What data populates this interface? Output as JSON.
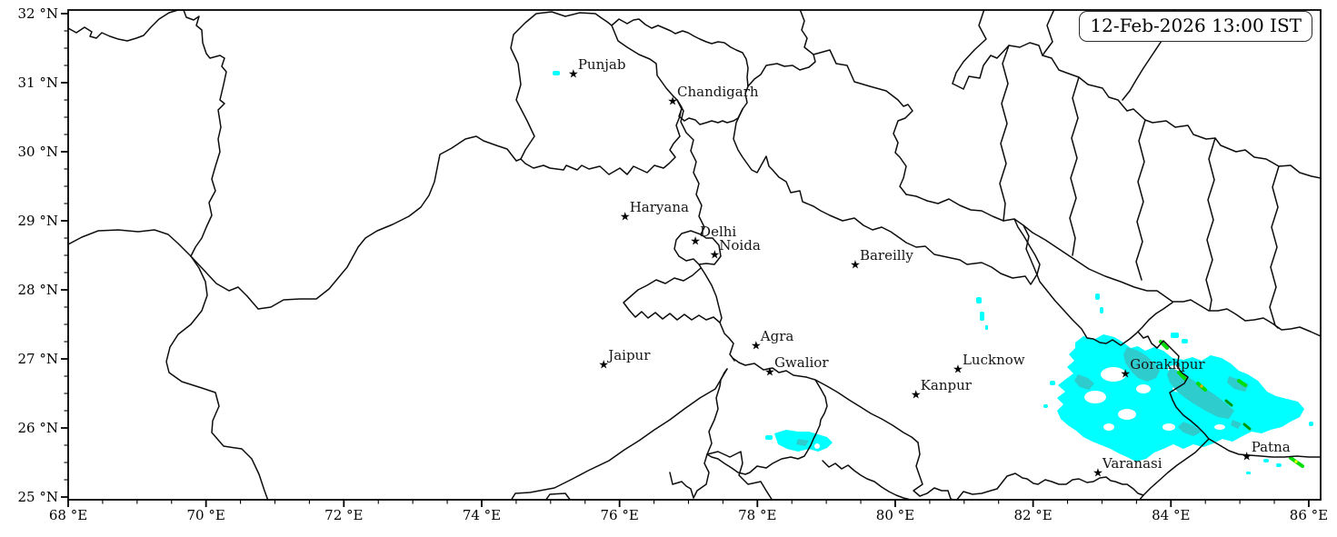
{
  "timestamp_label": "12-Feb-2026 13:00 IST",
  "map": {
    "extent": {
      "lon_min": 68.0,
      "lon_max": 86.2,
      "lat_min": 24.95,
      "lat_max": 32.05
    },
    "axis": {
      "x_ticks": [
        {
          "lon": 68,
          "label": "68 °E"
        },
        {
          "lon": 70,
          "label": "70 °E"
        },
        {
          "lon": 72,
          "label": "72 °E"
        },
        {
          "lon": 74,
          "label": "74 °E"
        },
        {
          "lon": 76,
          "label": "76 °E"
        },
        {
          "lon": 78,
          "label": "78 °E"
        },
        {
          "lon": 80,
          "label": "80 °E"
        },
        {
          "lon": 82,
          "label": "82 °E"
        },
        {
          "lon": 84,
          "label": "84 °E"
        },
        {
          "lon": 86,
          "label": "86 °E"
        }
      ],
      "y_ticks": [
        {
          "lat": 32,
          "label": "32 °N"
        },
        {
          "lat": 31,
          "label": "31 °N"
        },
        {
          "lat": 30,
          "label": "30 °N"
        },
        {
          "lat": 29,
          "label": "29 °N"
        },
        {
          "lat": 28,
          "label": "28 °N"
        },
        {
          "lat": 27,
          "label": "27 °N"
        },
        {
          "lat": 26,
          "label": "26 °N"
        },
        {
          "lat": 25,
          "label": "25 °N"
        }
      ],
      "x_minor_step": 0.5,
      "y_minor_step": 0.25
    },
    "cities": [
      {
        "name": "Punjab",
        "lon": 75.33,
        "lat": 31.12
      },
      {
        "name": "Chandigarh",
        "lon": 76.77,
        "lat": 30.72
      },
      {
        "name": "Haryana",
        "lon": 76.08,
        "lat": 29.05
      },
      {
        "name": "Delhi",
        "lon": 77.1,
        "lat": 28.7
      },
      {
        "name": "Noida",
        "lon": 77.38,
        "lat": 28.5
      },
      {
        "name": "Bareilly",
        "lon": 79.42,
        "lat": 28.36
      },
      {
        "name": "Agra",
        "lon": 77.98,
        "lat": 27.18
      },
      {
        "name": "Jaipur",
        "lon": 75.77,
        "lat": 26.91
      },
      {
        "name": "Gwalior",
        "lon": 78.18,
        "lat": 26.8
      },
      {
        "name": "Lucknow",
        "lon": 80.91,
        "lat": 26.84
      },
      {
        "name": "Kanpur",
        "lon": 80.3,
        "lat": 26.47
      },
      {
        "name": "Gorakhpur",
        "lon": 83.34,
        "lat": 26.78
      },
      {
        "name": "Varanasi",
        "lon": 82.94,
        "lat": 25.34
      },
      {
        "name": "Patna",
        "lon": 85.1,
        "lat": 25.58
      }
    ],
    "precipitation": {
      "levels": [
        {
          "name": "light",
          "color": "#00ffff"
        },
        {
          "name": "moderate",
          "color": "#2ecccc"
        },
        {
          "name": "heavy",
          "color": "#00dd00"
        },
        {
          "name": "very_heavy",
          "color": "#ffa500"
        },
        {
          "name": "intense",
          "color": "#ffff00"
        }
      ],
      "regions": [
        {
          "desc": "Large rain shield over eastern UP and NW Bihar around Gorakhpur",
          "lon_range": [
            82.3,
            86.0
          ],
          "lat_range": [
            25.5,
            27.2
          ]
        },
        {
          "desc": "Small patch southeast of Gwalior",
          "lon_range": [
            78.2,
            79.1
          ],
          "lat_range": [
            25.85,
            26.15
          ]
        },
        {
          "desc": "Tiny speck west of Punjab marker",
          "lon_range": [
            75.0,
            75.2
          ],
          "lat_range": [
            31.1,
            31.2
          ]
        },
        {
          "desc": "Small specks north of Lucknow",
          "lon_range": [
            81.1,
            81.3
          ],
          "lat_range": [
            27.4,
            27.9
          ]
        },
        {
          "desc": "Streaks east-southeast of Patna",
          "lon_range": [
            85.3,
            86.0
          ],
          "lat_range": [
            25.3,
            25.6
          ]
        }
      ]
    },
    "boundary_color": "#0d0d0d"
  }
}
